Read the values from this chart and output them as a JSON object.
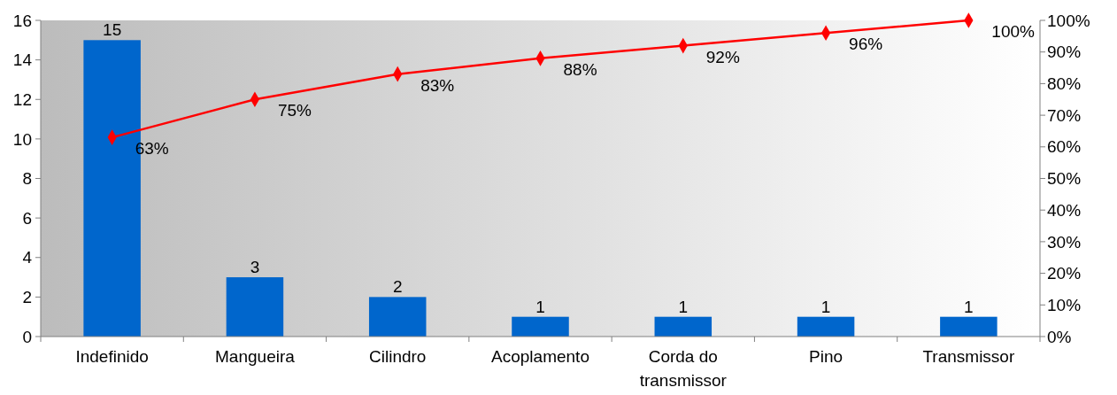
{
  "chart_data": {
    "type": "bar",
    "categories": [
      "Indefinido",
      "Mangueira",
      "Cilindro",
      "Acoplamento",
      "Corda do transmissor",
      "Pino",
      "Transmissor"
    ],
    "series": [
      {
        "color": "#0066cc",
        "values": [
          15,
          3,
          2,
          1,
          1,
          1,
          1
        ],
        "value_labels": [
          "15",
          "3",
          "2",
          "1",
          "1",
          "1",
          "1"
        ]
      },
      {
        "type": "line",
        "axis": "y2",
        "color": "#ff0000",
        "marker": "diamond",
        "values": [
          63,
          75,
          83,
          88,
          92,
          96,
          100
        ],
        "value_labels": [
          "63%",
          "75%",
          "83%",
          "88%",
          "92%",
          "96%",
          "100%"
        ]
      }
    ],
    "ylim": [
      0,
      16
    ],
    "yticks": [
      0,
      2,
      4,
      6,
      8,
      10,
      12,
      14,
      16
    ],
    "y2lim": [
      0,
      100
    ],
    "y2ticks": [
      {
        "value": 0,
        "label": "0%"
      },
      {
        "value": 10,
        "label": "10%"
      },
      {
        "value": 20,
        "label": "20%"
      },
      {
        "value": 30,
        "label": "30%"
      },
      {
        "value": 40,
        "label": "40%"
      },
      {
        "value": 50,
        "label": "50%"
      },
      {
        "value": 60,
        "label": "60%"
      },
      {
        "value": 70,
        "label": "70%"
      },
      {
        "value": 80,
        "label": "80%"
      },
      {
        "value": 90,
        "label": "90%"
      },
      {
        "value": 100,
        "label": "100%"
      }
    ],
    "grid": false
  }
}
